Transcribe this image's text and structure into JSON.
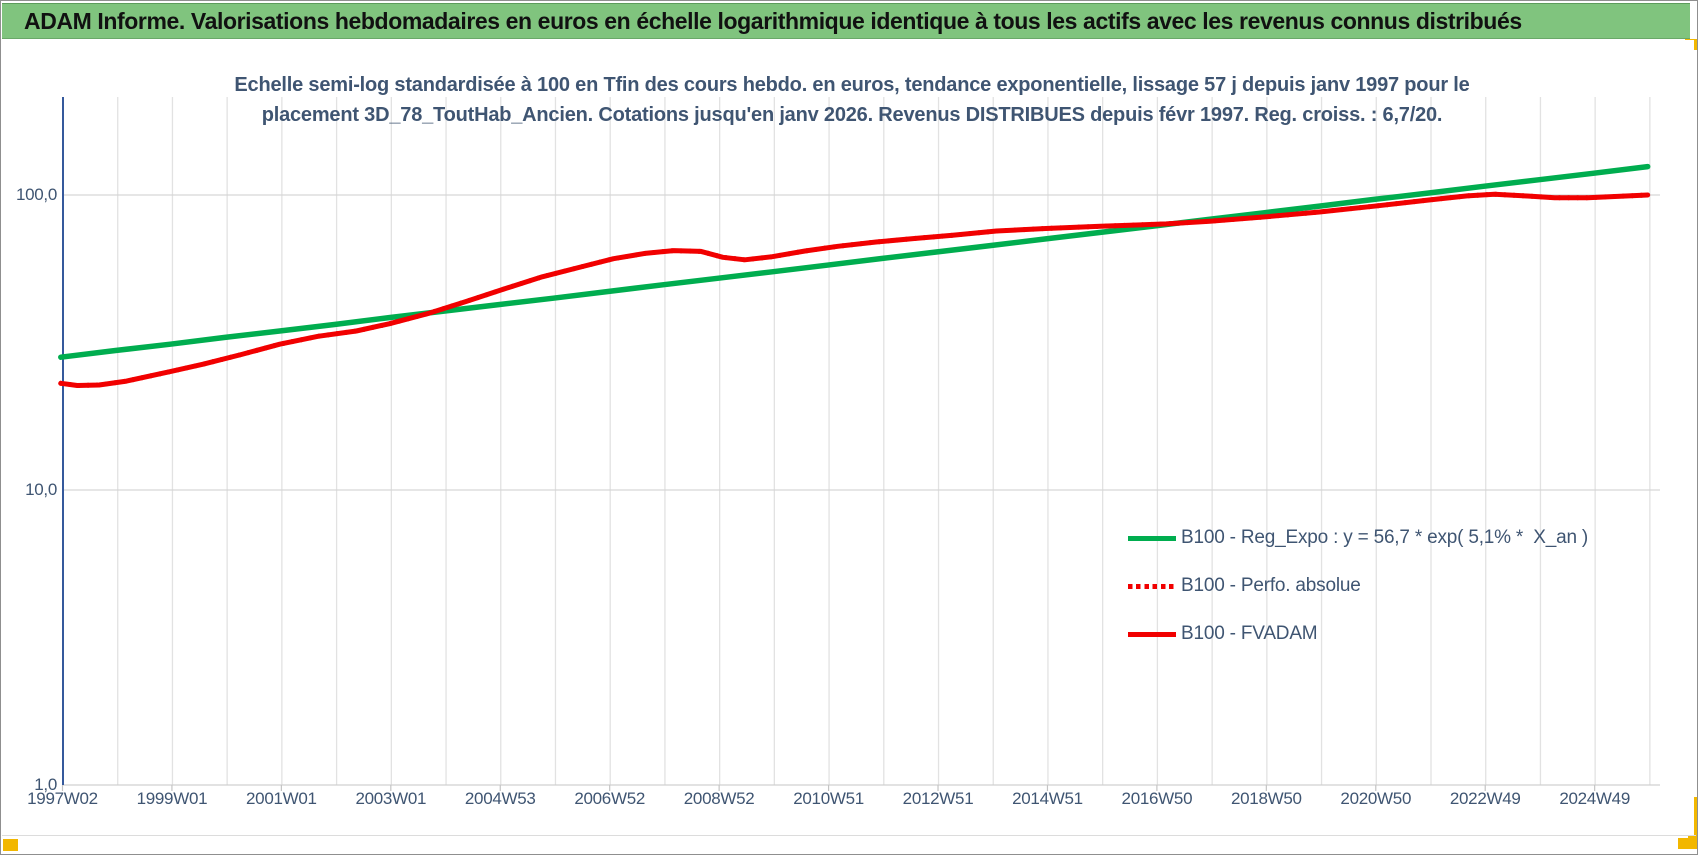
{
  "header": {
    "title": "ADAM Informe. Valorisations hebdomadaires en euros en échelle logarithmique identique à tous les actifs avec les revenus connus distribués",
    "bg_color": "#80c47e"
  },
  "colors": {
    "accent_handle": "#f2b700",
    "title_text": "#3f5572",
    "axis_line": "#35599c",
    "gridline_vertical": "#e2e2e2",
    "gridline_horizontal": "#d6d6d6",
    "series_green": "#00ad4f",
    "series_red": "#f10000"
  },
  "chart_data": {
    "type": "line",
    "title_line1": "Echelle semi-log standardisée à 100 en Tfin des cours hebdo. en euros, tendance exponentielle, lissage 57 j depuis janv 1997 pour le",
    "title_line2": "placement 3D_78_ToutHab_Ancien. Cotations jusqu'en janv 2026. Revenus DISTRIBUES depuis févr 1997. Reg. croiss. : 6,7/20.",
    "x_axis": {
      "tick_labels": [
        "1997W02",
        "1999W01",
        "2001W01",
        "2003W01",
        "2004W53",
        "2006W52",
        "2008W52",
        "2010W51",
        "2012W51",
        "2014W51",
        "2016W50",
        "2018W50",
        "2020W50",
        "2022W49",
        "2024W49"
      ],
      "start_year": 1997.04,
      "end_year": 2026.0,
      "gridline_interval_years": 1,
      "label_interval_years": 2
    },
    "y_axis": {
      "scale": "log10",
      "tick_labels": [
        "100,0",
        "10,0",
        "1,0"
      ],
      "tick_values": [
        100,
        10,
        1
      ],
      "min": 1,
      "max": 180
    },
    "grid": true,
    "legend": {
      "position": "inside-lower-right",
      "items": [
        {
          "label": "B100 - Reg_Expo : y = 56,7 * exp( 5,1% *  X_an )",
          "color": "#00ad4f",
          "line_style": "solid"
        },
        {
          "label": "B100 - Perfo. absolue",
          "color": "#f10000",
          "line_style": "dotted"
        },
        {
          "label": "B100 - FVADAM",
          "color": "#f10000",
          "line_style": "solid"
        }
      ]
    },
    "series": [
      {
        "key": "reg_expo",
        "name": "B100 - Reg_Expo : y = 56,7 * exp( 5,1% *  X_an )",
        "color": "#00ad4f",
        "style": "solid",
        "width": 5.5,
        "points": [
          [
            1997.0,
            28.2
          ],
          [
            1998,
            29.7
          ],
          [
            1999,
            31.2
          ],
          [
            2000,
            32.9
          ],
          [
            2001,
            34.6
          ],
          [
            2002,
            36.4
          ],
          [
            2003,
            38.4
          ],
          [
            2004,
            40.4
          ],
          [
            2005,
            42.5
          ],
          [
            2006,
            44.7
          ],
          [
            2007,
            47.1
          ],
          [
            2008,
            49.6
          ],
          [
            2009,
            52.2
          ],
          [
            2010,
            54.9
          ],
          [
            2011,
            57.8
          ],
          [
            2012,
            60.9
          ],
          [
            2013,
            64.1
          ],
          [
            2014,
            67.4
          ],
          [
            2015,
            71.0
          ],
          [
            2016,
            74.7
          ],
          [
            2017,
            78.6
          ],
          [
            2018,
            82.8
          ],
          [
            2019,
            87.1
          ],
          [
            2020,
            91.7
          ],
          [
            2021,
            96.6
          ],
          [
            2022,
            101.6
          ],
          [
            2023,
            107.0
          ],
          [
            2024,
            112.6
          ],
          [
            2025,
            118.5
          ],
          [
            2026,
            124.8
          ]
        ]
      },
      {
        "key": "perfo_absolue",
        "name": "B100 - Perfo. absolue",
        "color": "#f10000",
        "style": "dotted",
        "width": 5,
        "same_as": "fvadam",
        "note": "superposée à B100 - FVADAM (revenus distribués)"
      },
      {
        "key": "fvadam",
        "name": "B100 - FVADAM",
        "color": "#f10000",
        "style": "solid",
        "width": 5,
        "points": [
          [
            1997.0,
            23.0
          ],
          [
            1997.3,
            22.6
          ],
          [
            1997.7,
            22.7
          ],
          [
            1998.2,
            23.4
          ],
          [
            1999.0,
            25.2
          ],
          [
            1999.6,
            26.7
          ],
          [
            2000.3,
            28.8
          ],
          [
            2001.0,
            31.2
          ],
          [
            2001.7,
            33.2
          ],
          [
            2002.4,
            34.6
          ],
          [
            2003.0,
            36.6
          ],
          [
            2003.7,
            39.6
          ],
          [
            2004.4,
            43.5
          ],
          [
            2005.1,
            48.0
          ],
          [
            2005.8,
            52.8
          ],
          [
            2006.5,
            57.0
          ],
          [
            2007.1,
            60.8
          ],
          [
            2007.7,
            63.5
          ],
          [
            2008.2,
            64.8
          ],
          [
            2008.7,
            64.4
          ],
          [
            2009.1,
            61.5
          ],
          [
            2009.5,
            60.3
          ],
          [
            2010.0,
            61.8
          ],
          [
            2010.6,
            64.6
          ],
          [
            2011.2,
            67.0
          ],
          [
            2011.9,
            69.3
          ],
          [
            2012.6,
            71.2
          ],
          [
            2013.3,
            73.0
          ],
          [
            2014.1,
            75.5
          ],
          [
            2015.0,
            77.0
          ],
          [
            2016.0,
            78.3
          ],
          [
            2017.2,
            79.8
          ],
          [
            2018.0,
            81.5
          ],
          [
            2019.0,
            84.3
          ],
          [
            2020.0,
            87.6
          ],
          [
            2021.0,
            91.6
          ],
          [
            2022.0,
            96.2
          ],
          [
            2022.7,
            99.3
          ],
          [
            2023.2,
            100.6
          ],
          [
            2023.8,
            99.2
          ],
          [
            2024.3,
            97.9
          ],
          [
            2024.9,
            97.9
          ],
          [
            2025.4,
            98.8
          ],
          [
            2026.0,
            100.0
          ]
        ]
      }
    ]
  }
}
